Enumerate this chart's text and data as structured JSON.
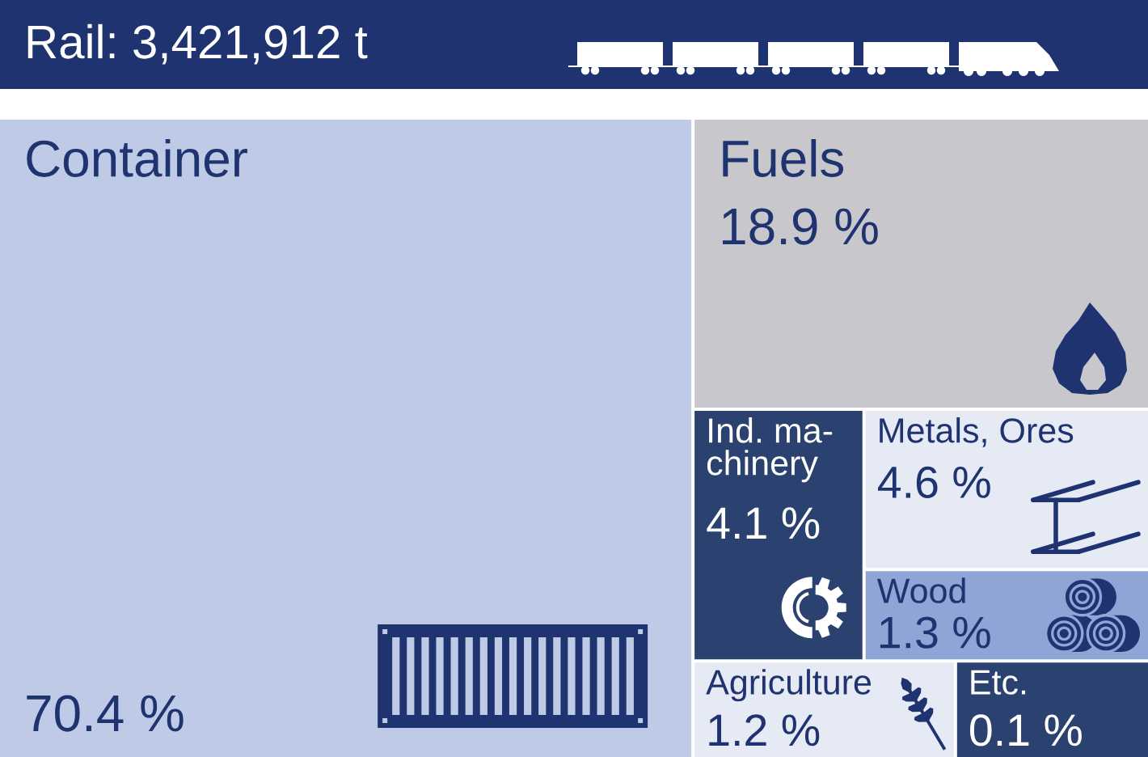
{
  "chart_data": {
    "type": "other",
    "title": "Rail: 3,421,912 t",
    "categories": [
      "Container",
      "Fuels",
      "Ind. ma-\nchinery",
      "Metals, Ores",
      "Wood",
      "Agriculture",
      "Etc."
    ],
    "values": [
      70.4,
      18.9,
      4.1,
      4.6,
      1.3,
      1.2,
      0.1
    ],
    "value_labels": [
      "70.4 %",
      "18.9 %",
      "4.1 %",
      "4.6 %",
      "1.3 %",
      "1.2 %",
      "0.1 %"
    ],
    "colors": [
      "#bfcae6",
      "#c8c8cc",
      "#2b4170",
      "#e6eaf4",
      "#8fa5d6",
      "#e6eaf4",
      "#2b4170"
    ]
  }
}
